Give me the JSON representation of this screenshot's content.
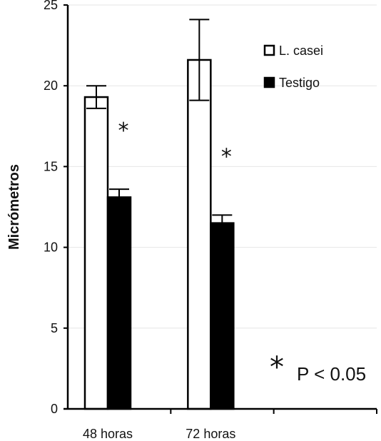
{
  "chart_data": {
    "type": "bar",
    "categories": [
      "48 horas",
      "72 horas"
    ],
    "series": [
      {
        "name": "L. casei",
        "values": [
          19.3,
          21.6
        ],
        "error": [
          0.7,
          2.5
        ],
        "color": "#ffffff"
      },
      {
        "name": "Testigo",
        "values": [
          13.1,
          11.5
        ],
        "error": [
          0.5,
          0.5
        ],
        "color": "#000000"
      }
    ],
    "ylabel": "Micrómetros",
    "xlabel": "",
    "ylim": [
      0,
      25
    ],
    "yticks": [
      0,
      5,
      10,
      15,
      20,
      25
    ],
    "grid": true,
    "legend_position": "top-right",
    "significance_marker": "*",
    "significant_categories": [
      "48 horas",
      "72 horas"
    ],
    "footnote": {
      "symbol": "*",
      "text": "P < 0.05"
    }
  }
}
